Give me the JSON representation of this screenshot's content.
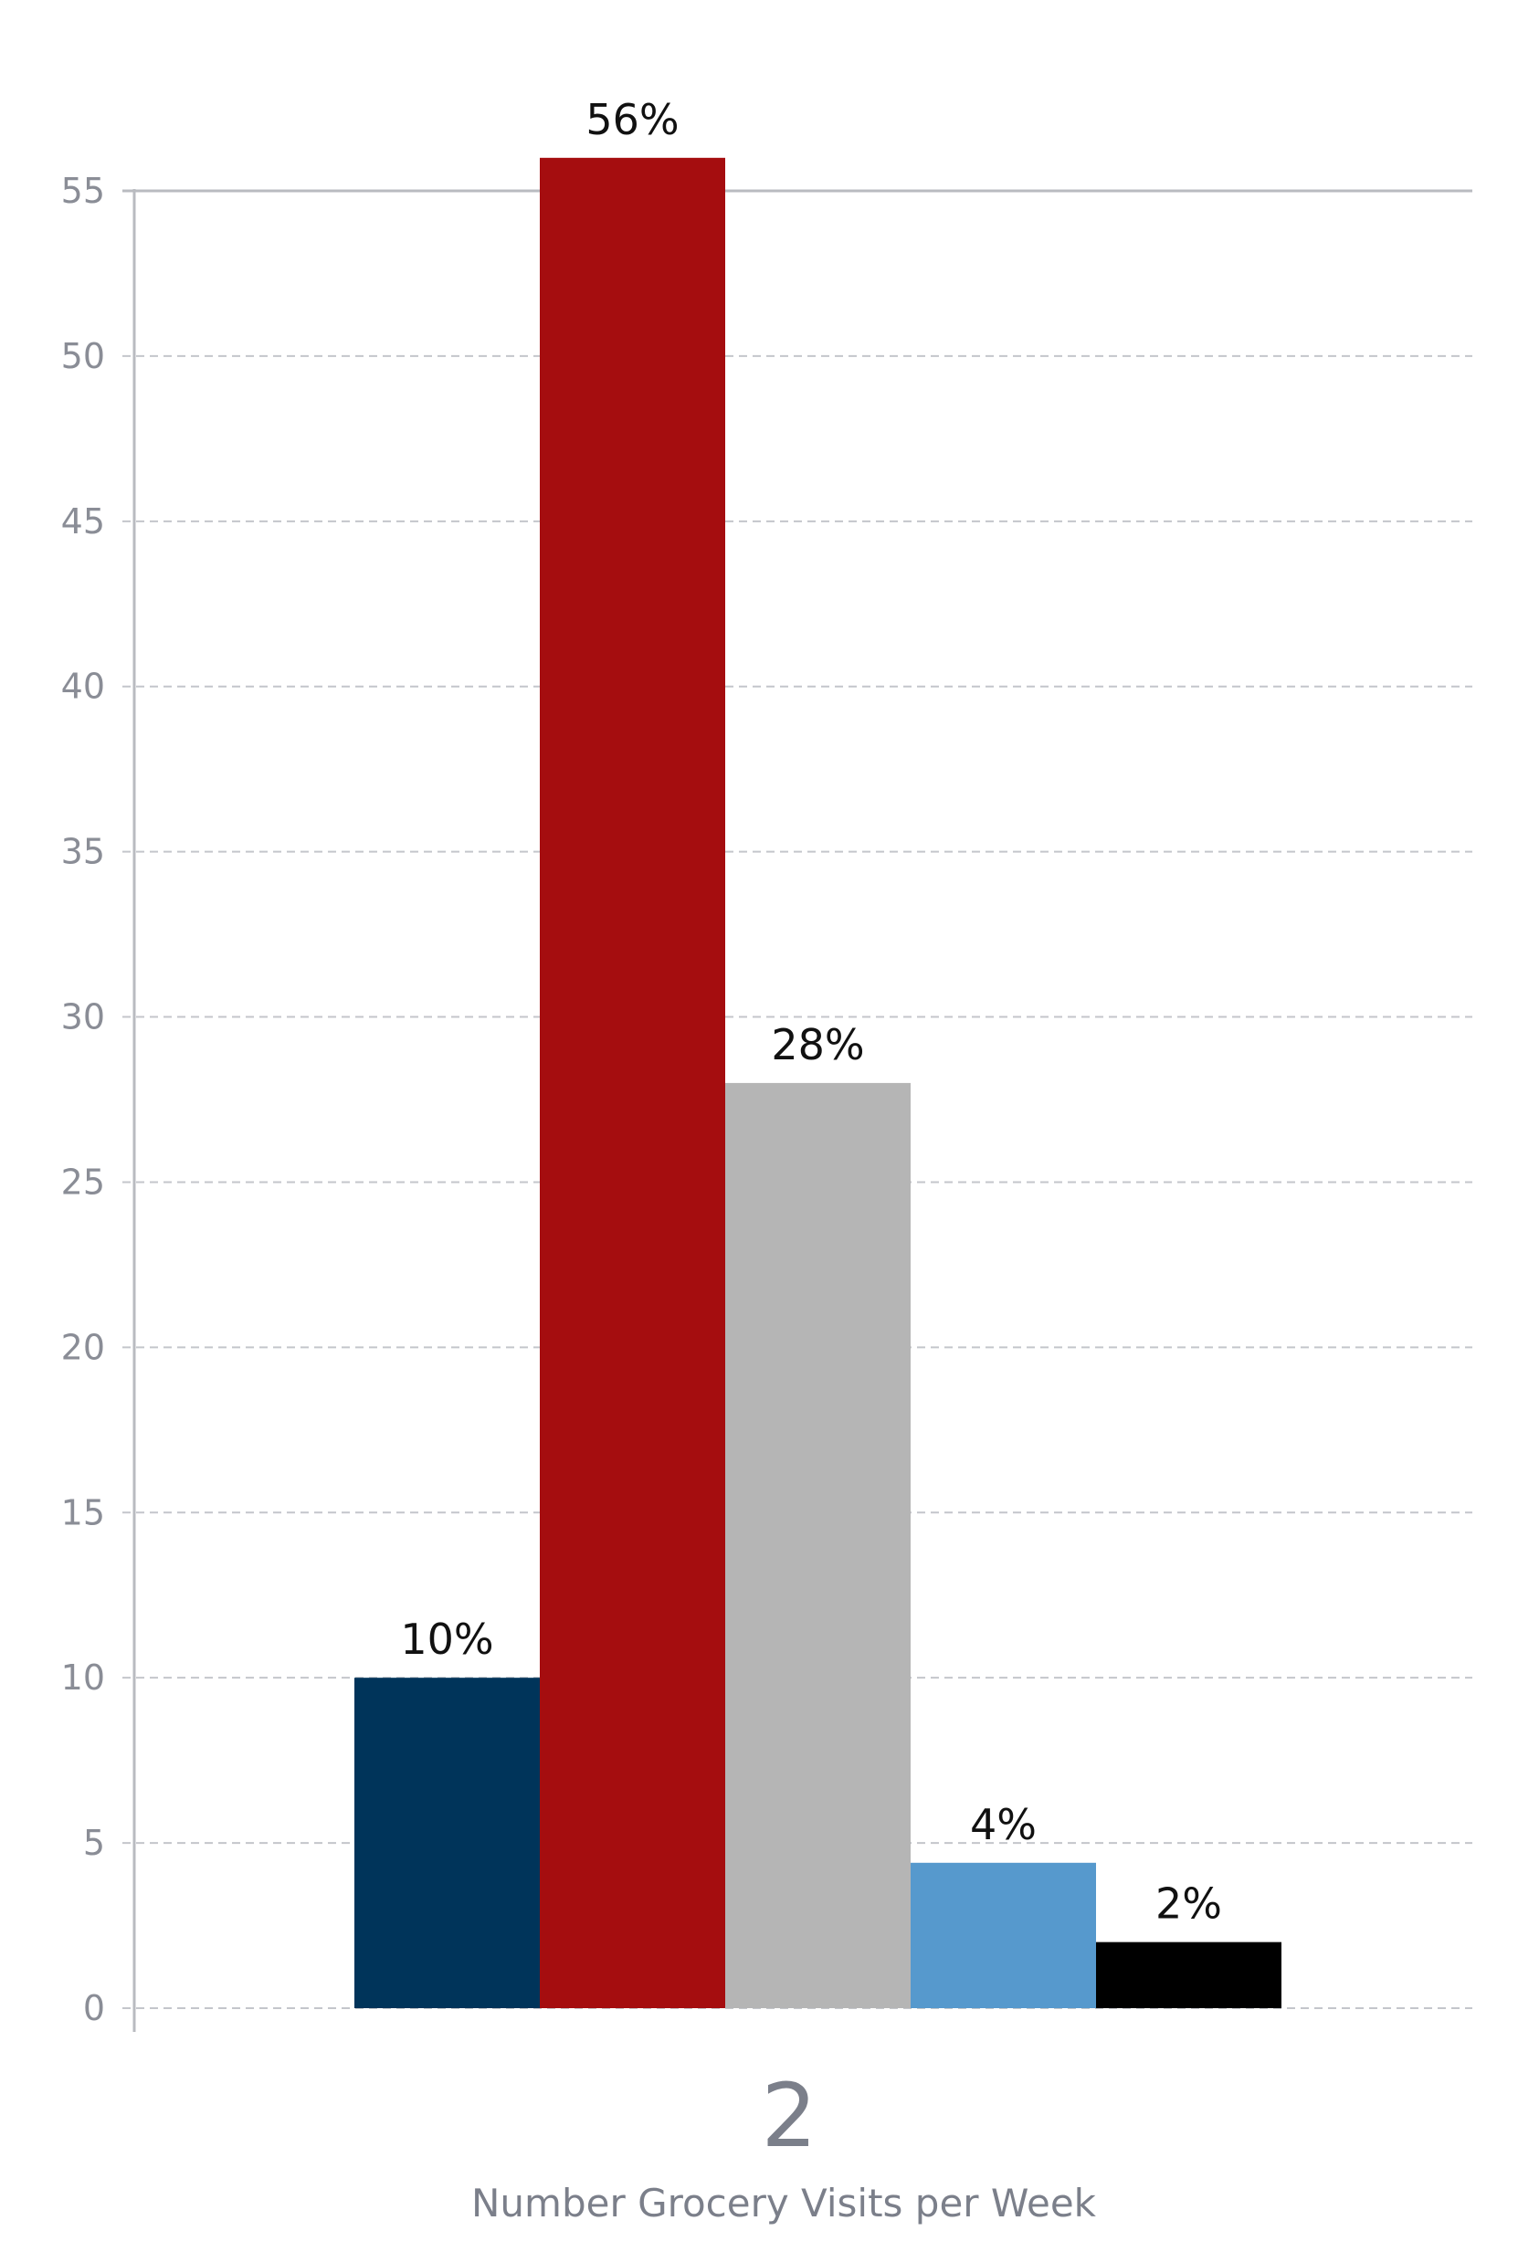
{
  "chart_data": {
    "type": "bar",
    "categories": [
      "2"
    ],
    "series": [
      {
        "values": [
          10
        ],
        "color": "#00345a"
      },
      {
        "values": [
          56
        ],
        "color": "#a50d0f"
      },
      {
        "values": [
          28
        ],
        "color": "#b5b5b5"
      },
      {
        "values": [
          4.4
        ],
        "color": "#5699cd"
      },
      {
        "values": [
          2
        ],
        "color": "#000000"
      }
    ],
    "data_labels": [
      "10%",
      "56%",
      "28%",
      "4%",
      "2%"
    ],
    "title": "",
    "xlabel": "Number Grocery Visits per Week",
    "ylabel": "",
    "ylim": [
      0,
      55
    ],
    "yticks": [
      0,
      5,
      10,
      15,
      20,
      25,
      30,
      35,
      40,
      45,
      50,
      55
    ],
    "grid": true,
    "legend": "none"
  }
}
